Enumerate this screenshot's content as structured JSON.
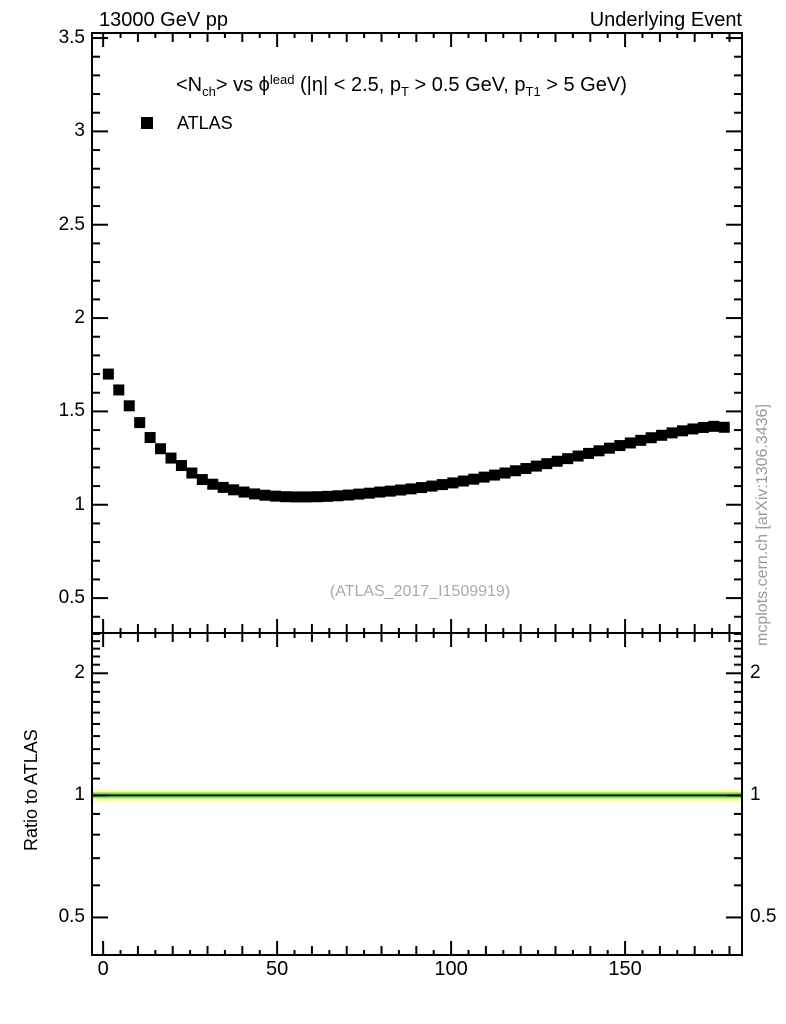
{
  "header": {
    "left": "13000 GeV pp",
    "right": "Underlying Event"
  },
  "watermark": {
    "text": "(ATLAS_2017_I1509919)",
    "color": "#aaaaaa"
  },
  "side_note": {
    "text": "mcplots.cern.ch [arXiv:1306.3436]",
    "color": "#999999"
  },
  "chart_data": {
    "type": "scatter",
    "title_parts": [
      {
        "t": "<N",
        "m": "n"
      },
      {
        "t": "ch",
        "m": "sub"
      },
      {
        "t": "> vs ",
        "m": "n"
      },
      {
        "t": "ϕ",
        "m": "n"
      },
      {
        "t": "lead",
        "m": "sup"
      },
      {
        "t": " (|η| < 2.5, p",
        "m": "n"
      },
      {
        "t": "T",
        "m": "sub"
      },
      {
        "t": " > 0.5 GeV, p",
        "m": "n"
      },
      {
        "t": "T1",
        "m": "sub"
      },
      {
        "t": " > 5 GeV)",
        "m": "n"
      }
    ],
    "legend": [
      {
        "label": "ATLAS",
        "marker": "filled-square",
        "color": "#000000"
      }
    ],
    "x_axis": {
      "lim": [
        -3.2,
        183.6
      ],
      "major_ticks": [
        0,
        50,
        100,
        150
      ],
      "major_tick_labels": [
        "0",
        "50",
        "100",
        "150"
      ],
      "medium_tick_step": 10,
      "minor_tick_step": 5
    },
    "main_panel": {
      "scale": "linear",
      "ylim": [
        0.313,
        3.527
      ],
      "major_ticks": [
        0.5,
        1,
        1.5,
        2,
        2.5,
        3,
        3.5
      ],
      "major_tick_labels": [
        "0.5",
        "1",
        "1.5",
        "2",
        "2.5",
        "3",
        "3.5"
      ],
      "minor_tick_step": 0.1
    },
    "ratio_panel": {
      "ylabel": "Ratio to ATLAS",
      "scale": "log",
      "ylim": [
        0.404,
        2.514
      ],
      "major_ticks": [
        0.5,
        1,
        2
      ],
      "major_tick_labels": [
        "0.5",
        "1",
        "2"
      ],
      "minor_tick_step": 0.1,
      "band": {
        "center": 1.0,
        "outer": [
          0.966,
          1.035
        ],
        "inner": [
          0.984,
          1.017
        ],
        "outer_color": "#ffff9c",
        "inner_color": "#6fdf6f",
        "center_line_color": "#000000"
      }
    },
    "series": [
      {
        "name": "ATLAS",
        "marker": "filled-square",
        "color": "#000000",
        "x": [
          1.5,
          4.5,
          7.5,
          10.5,
          13.5,
          16.5,
          19.5,
          22.5,
          25.5,
          28.5,
          31.5,
          34.5,
          37.5,
          40.5,
          43.5,
          46.5,
          49.5,
          52.5,
          55.5,
          58.5,
          61.5,
          64.5,
          67.5,
          70.5,
          73.5,
          76.5,
          79.5,
          82.5,
          85.5,
          88.5,
          91.5,
          94.5,
          97.5,
          100.5,
          103.5,
          106.5,
          109.5,
          112.5,
          115.5,
          118.5,
          121.5,
          124.5,
          127.5,
          130.5,
          133.5,
          136.5,
          139.5,
          142.5,
          145.5,
          148.5,
          151.5,
          154.5,
          157.5,
          160.5,
          163.5,
          166.5,
          169.5,
          172.5,
          175.5,
          178.5
        ],
        "y": [
          1.7,
          1.615,
          1.53,
          1.44,
          1.36,
          1.3,
          1.25,
          1.21,
          1.17,
          1.135,
          1.11,
          1.093,
          1.08,
          1.068,
          1.058,
          1.051,
          1.046,
          1.043,
          1.042,
          1.042,
          1.043,
          1.045,
          1.048,
          1.052,
          1.057,
          1.062,
          1.068,
          1.073,
          1.079,
          1.085,
          1.092,
          1.1,
          1.108,
          1.117,
          1.127,
          1.137,
          1.148,
          1.159,
          1.17,
          1.182,
          1.194,
          1.207,
          1.22,
          1.233,
          1.247,
          1.261,
          1.275,
          1.289,
          1.303,
          1.317,
          1.331,
          1.345,
          1.359,
          1.372,
          1.385,
          1.396,
          1.406,
          1.414,
          1.42,
          1.415
        ]
      }
    ]
  }
}
